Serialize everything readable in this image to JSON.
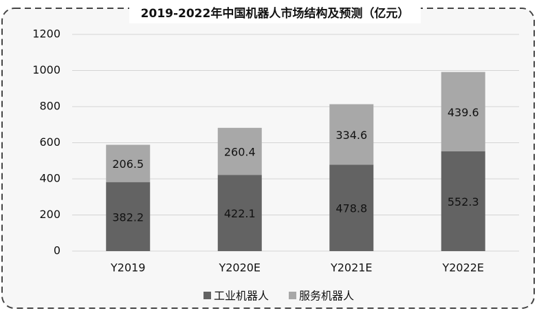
{
  "chart_data": {
    "type": "bar",
    "stacked": true,
    "title": "2019-2022年中国机器人市场结构及预测（亿元）",
    "categories": [
      "Y2019",
      "Y2020E",
      "Y2021E",
      "Y2022E"
    ],
    "series": [
      {
        "name": "工业机器人",
        "color": "#636363",
        "values": [
          382.2,
          422.1,
          478.8,
          552.3
        ]
      },
      {
        "name": "服务机器人",
        "color": "#a8a8a8",
        "values": [
          206.5,
          260.4,
          334.6,
          439.6
        ]
      }
    ],
    "ylim": [
      0,
      1200
    ],
    "yticks": [
      0,
      200,
      400,
      600,
      800,
      1000,
      1200
    ],
    "grid": true,
    "legend": "bottom"
  }
}
